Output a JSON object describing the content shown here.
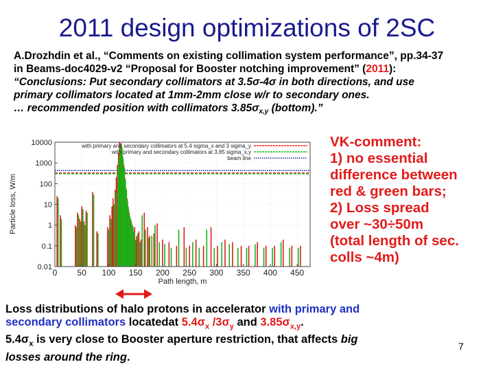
{
  "title": "2011 design optimizations of 2SC",
  "reference": {
    "author": "A.Drozhdin",
    "line1_rest": " et al., “Comments on existing collimation system performance”, pp.34-37",
    "line2_pre": "in Beams-doc4029-v2 “Proposal for Booster notching improvement” (",
    "line2_year": "2011",
    "line2_post": "):",
    "line3": "“Conclusions: Put secondary collimators at 3.5σ-4σ in both directions, and use",
    "line4": "primary collimators located at  1mm-2mm close w/r to secondary ones.",
    "line5_pre": "… recommended position with collimators 3.85σ",
    "line5_sub": "x,y",
    "line5_post": " (bottom).”"
  },
  "vk_comment": {
    "lines": [
      "VK-comment:",
      "1) no essential",
      "difference between",
      "red & green bars;",
      "2) Loss spread",
      "over ~30÷50m",
      "(total length of sec.",
      "colls ~4m)"
    ]
  },
  "caption": {
    "l1_a": "Loss distributions of halo protons in accelerator ",
    "l1_b": "with primary and",
    "l2_a": "secondary collimators",
    "l2_b": " locatedat ",
    "l2_c": "5.4σ",
    "l2_c_sub": "x",
    "l2_d": " /3σ",
    "l2_d_sub": "y",
    "l2_e": " and ",
    "l2_f": "3.85σ",
    "l2_f_sub": "x,y",
    "l2_g": ".",
    "l3_a": "5.4σ",
    "l3_a_sub": "x",
    "l3_b": " is very close to Booster aperture restriction, that affects ",
    "l3_c": "big",
    "l4_a": "losses around the ring",
    "l4_b": "."
  },
  "page_number": "7",
  "chart_data": {
    "type": "bar",
    "xlabel": "Path length, m",
    "ylabel": "Particle loss, W/m",
    "x_ticks": [
      0,
      50,
      100,
      150,
      200,
      250,
      300,
      350,
      400,
      450
    ],
    "y_ticks": [
      "0.01",
      "0.1",
      "1",
      "10",
      "100",
      "1000",
      "10000"
    ],
    "xlim": [
      0,
      474
    ],
    "ylim": [
      0.01,
      10000
    ],
    "yscale": "log",
    "legend_position": "top",
    "series": [
      {
        "name": "with primary and secondary collimators at 5.4 sigma_x and 3 sigma_y",
        "color": "#e41a1c",
        "style": "bars",
        "x": [
          4,
          10,
          38,
          42,
          46,
          50,
          54,
          58,
          70,
          78,
          98,
          102,
          106,
          108,
          112,
          114,
          116,
          118,
          120,
          122,
          124,
          126,
          128,
          130,
          132,
          134,
          136,
          138,
          140,
          142,
          144,
          146,
          148,
          152,
          156,
          160,
          166,
          172,
          176,
          184,
          190,
          200,
          212,
          226,
          240,
          250,
          262,
          276,
          290,
          302,
          316,
          330,
          346,
          360,
          376,
          392,
          408,
          424,
          440,
          456
        ],
        "values": [
          25,
          3,
          1,
          4,
          2,
          8,
          1.5,
          5,
          40,
          0.5,
          0.8,
          3,
          8,
          20,
          50,
          200,
          800,
          3000,
          10000,
          9000,
          6000,
          2000,
          800,
          200,
          60,
          20,
          8,
          4,
          2,
          1.5,
          1,
          0.5,
          0.8,
          0.3,
          0.5,
          0.2,
          4,
          0.8,
          0.3,
          0.4,
          1.2,
          0.2,
          0.15,
          0.1,
          0.8,
          0.1,
          0.2,
          0.1,
          0.8,
          0.1,
          0.2,
          0.15,
          0.1,
          0.1,
          0.15,
          0.1,
          0.1,
          0.2,
          0.1,
          0.1
        ]
      },
      {
        "name": "with primary and secondary collimators at 3.85 sigma_x,y",
        "color": "#19b219",
        "style": "bars",
        "x": [
          6,
          12,
          40,
          44,
          48,
          52,
          56,
          60,
          72,
          80,
          100,
          104,
          110,
          113,
          117,
          119,
          121,
          123,
          125,
          127,
          129,
          131,
          133,
          135,
          137,
          139,
          141,
          143,
          145,
          147,
          150,
          154,
          158,
          162,
          168,
          174,
          180,
          186,
          194,
          204,
          216,
          230,
          244,
          256,
          268,
          282,
          296,
          310,
          324,
          340,
          356,
          372,
          388,
          404,
          420,
          436,
          452
        ],
        "values": [
          20,
          2,
          0.8,
          3,
          1.5,
          6,
          1,
          4,
          30,
          0.4,
          0.6,
          2,
          10,
          40,
          600,
          2000,
          8000,
          7000,
          5000,
          1500,
          600,
          150,
          50,
          15,
          6,
          3,
          2,
          1,
          0.8,
          0.5,
          0.2,
          0.4,
          0.15,
          3,
          0.6,
          0.25,
          0.3,
          1,
          0.15,
          0.12,
          0.08,
          0.6,
          0.08,
          0.15,
          0.08,
          0.6,
          0.08,
          0.15,
          0.12,
          0.08,
          0.08,
          0.12,
          0.08,
          0.08,
          0.15,
          0.08,
          0.08
        ]
      },
      {
        "name": "beam line",
        "color": "#1a1aaa",
        "style": "dotted",
        "value": 430
      },
      {
        "name": "",
        "color": "#e41a1c",
        "style": "dashed",
        "value": 330
      },
      {
        "name": "",
        "color": "#19b219",
        "style": "dashed",
        "value": 300
      }
    ]
  }
}
